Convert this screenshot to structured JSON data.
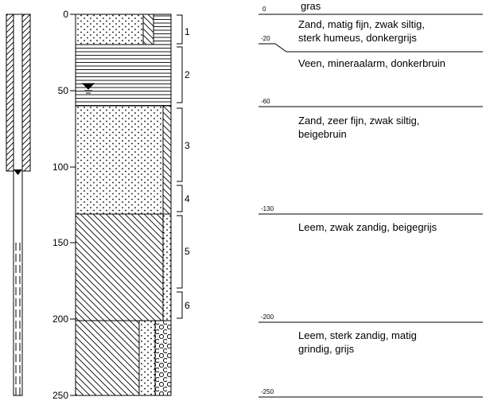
{
  "depth_scale": {
    "ticks": [
      0,
      50,
      100,
      150,
      200,
      250
    ]
  },
  "samples": [
    "1",
    "2",
    "3",
    "4",
    "5",
    "6"
  ],
  "profile": {
    "surface_label": "gras",
    "layers": [
      {
        "depth": 0,
        "description": [
          "Zand, matig fijn, zwak siltig,",
          "sterk humeus, donkergrijs"
        ]
      },
      {
        "depth": -20,
        "description": [
          "Veen, mineraalarm, donkerbruin"
        ]
      },
      {
        "depth": -60,
        "description": [
          "Zand, zeer fijn, zwak siltig,",
          "beigebruin"
        ]
      },
      {
        "depth": -130,
        "description": [
          "Leem, zwak zandig, beigegrijs"
        ]
      },
      {
        "depth": -200,
        "description": [
          "Leem, sterk zandig, matig",
          "grindig, grijs"
        ]
      },
      {
        "depth": -250
      }
    ]
  }
}
